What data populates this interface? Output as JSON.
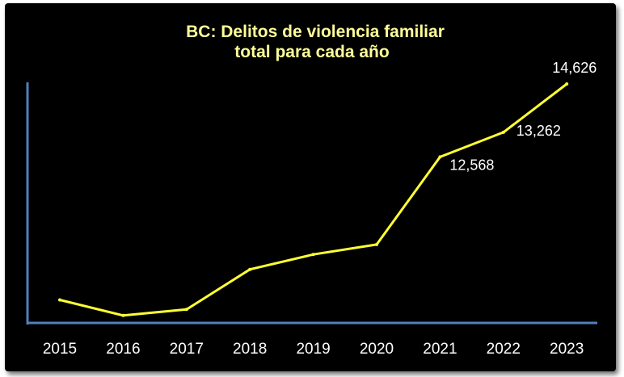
{
  "chart_data": {
    "type": "line",
    "title": "BC: Delitos de violencia familiar",
    "subtitle": "total para  cada año",
    "xlabel": "",
    "ylabel": "",
    "categories": [
      "2015",
      "2016",
      "2017",
      "2018",
      "2019",
      "2020",
      "2021",
      "2022",
      "2023"
    ],
    "series": [
      {
        "values": [
          8540,
          8100,
          8270,
          9400,
          9820,
          10100,
          12568,
          13262,
          14626
        ]
      }
    ],
    "data_labels": [
      {
        "index": 6,
        "text": "12,568"
      },
      {
        "index": 7,
        "text": "13,262"
      },
      {
        "index": 8,
        "text": "14,626"
      }
    ],
    "ylim": [
      7800,
      14626
    ],
    "grid": false,
    "legend": "none",
    "colors": {
      "background": "#000000",
      "line": "#ffff33",
      "axis": "#4f81bd",
      "title": "#ffff99",
      "text": "#ffffff"
    }
  }
}
